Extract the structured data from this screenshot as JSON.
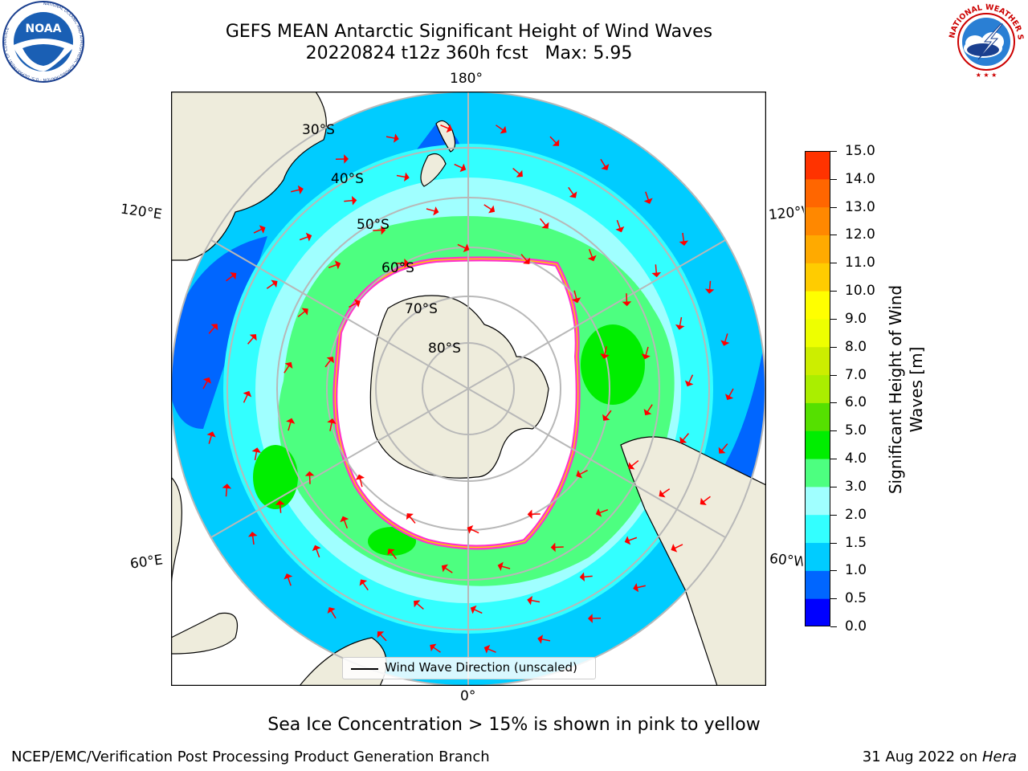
{
  "header": {
    "title_line1": "GEFS MEAN Antarctic Significant Height of Wind Waves",
    "title_line2": "20220824 t12z 360h fcst   Max: 5.95"
  },
  "logos": {
    "noaa_text": "NOAA",
    "noaa_ring_text": "NATIONAL OCEANIC AND ATMOSPHERIC ADMINISTRATION · U.S. DEPARTMENT OF COMMERCE",
    "nws_ring_text": "NATIONAL WEATHER SERVICE"
  },
  "map": {
    "lon_labels": {
      "top": "180°",
      "bottom": "0°",
      "left_upper": "120°E",
      "left_lower": "60°E",
      "right_upper": "120°W",
      "right_lower": "60°W"
    },
    "lat_labels": [
      "30°S",
      "40°S",
      "50°S",
      "60°S",
      "70°S",
      "80°S"
    ],
    "legend_label": "Wind Wave Direction (unscaled)"
  },
  "colorbar": {
    "title": "Significant Height of Wind Waves [m]",
    "ticks": [
      "0.0",
      "0.5",
      "1.0",
      "1.5",
      "2.0",
      "3.0",
      "4.0",
      "5.0",
      "6.0",
      "7.0",
      "8.0",
      "9.0",
      "10.0",
      "11.0",
      "12.0",
      "13.0",
      "14.0",
      "15.0"
    ],
    "colors": [
      "#0000ff",
      "#0066ff",
      "#00ccff",
      "#33ffff",
      "#a0ffff",
      "#4dff80",
      "#00ee00",
      "#55e000",
      "#aaee00",
      "#ccee00",
      "#eeff00",
      "#ffff00",
      "#ffcc00",
      "#ffaa00",
      "#ff8800",
      "#ff6600",
      "#ff3300",
      "#ff0000"
    ]
  },
  "notes": {
    "sea_ice_note": "Sea Ice Concentration > 15% is shown in pink to yellow",
    "footer_left": "NCEP/EMC/Verification Post Processing Product Generation Branch",
    "footer_right_date": "31 Aug 2022 on ",
    "footer_right_machine": "Hera"
  }
}
